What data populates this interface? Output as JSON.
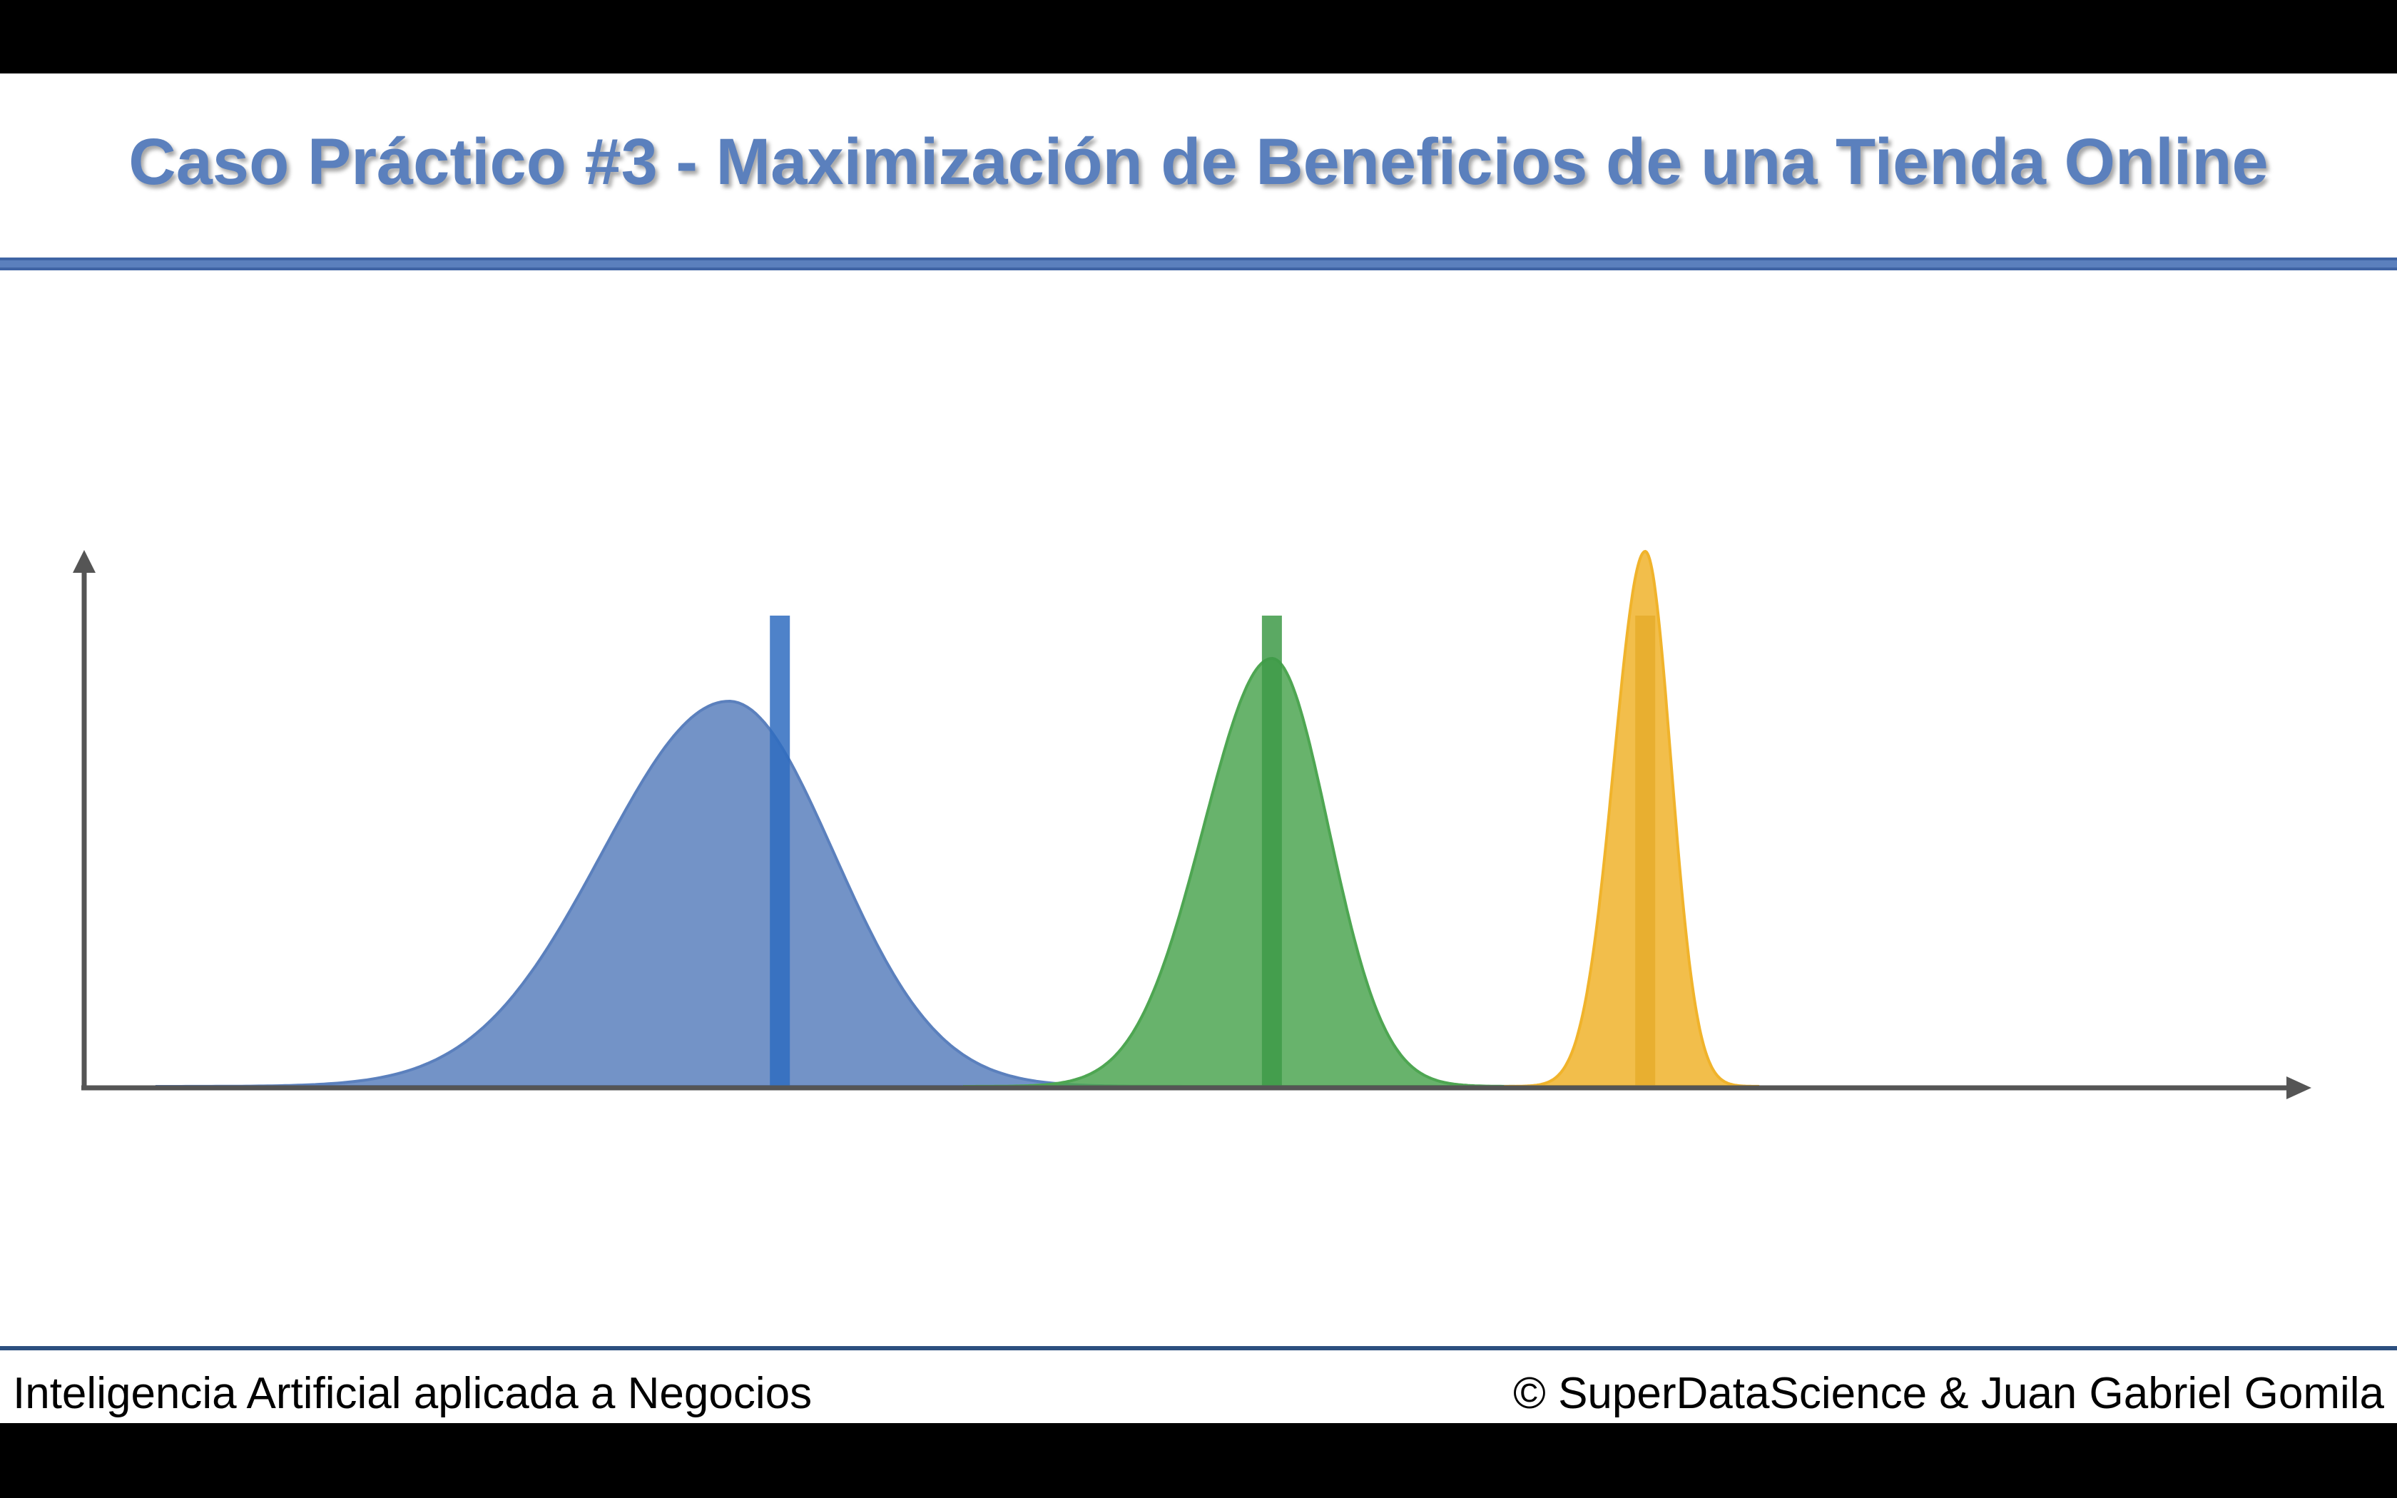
{
  "slide": {
    "title": "Caso Práctico #3 - Maximización de Beneficios de una Tienda Online",
    "footer_left": "Inteligencia Artificial aplicada a Negocios",
    "footer_right": "© SuperDataScience & Juan Gabriel Gomila"
  },
  "colors": {
    "title": "#5b80bd",
    "rule": "#5b80bd",
    "axis": "#555555",
    "blue": "#5b80bd",
    "blue_line": "#2f6cc0",
    "green": "#4ea652",
    "green_line": "#3e9a48",
    "yellow": "#f0b32b",
    "yellow_line": "#e6ad2c"
  },
  "chart_data": {
    "type": "area",
    "xlabel": "",
    "ylabel": "",
    "grid": false,
    "series": [
      {
        "mean": 0.41,
        "mode": 0.38,
        "spread": 0.065,
        "peak": 0.72,
        "color": "#5b80bd"
      },
      {
        "mean": 0.7,
        "mode": 0.7,
        "spread": 0.035,
        "peak": 0.8,
        "color": "#4ea652"
      },
      {
        "mean": 0.92,
        "mode": 0.92,
        "spread": 0.016,
        "peak": 1.0,
        "color": "#f0b32b"
      }
    ],
    "xlim": [
      0,
      1.3
    ],
    "ylim": [
      0,
      1.0
    ]
  }
}
